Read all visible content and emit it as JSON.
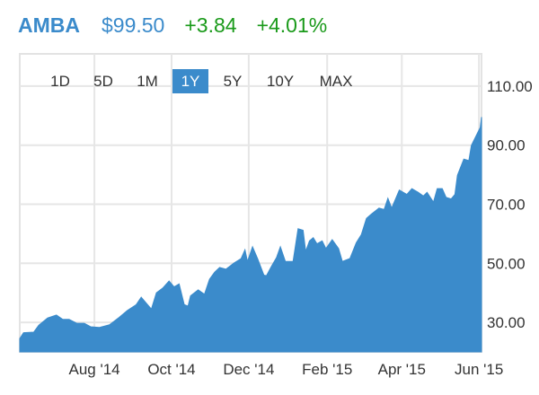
{
  "header": {
    "symbol": "AMBA",
    "price": "$99.50",
    "change": "+3.84",
    "change_pct": "+4.01%",
    "colors": {
      "symbol": "#3b8bcb",
      "price": "#3b8bcb",
      "change": "#1a9a1a"
    }
  },
  "range_buttons": [
    {
      "label": "1D",
      "active": false
    },
    {
      "label": "5D",
      "active": false
    },
    {
      "label": "1M",
      "active": false
    },
    {
      "label": "1Y",
      "active": true
    },
    {
      "label": "5Y",
      "active": false
    },
    {
      "label": "10Y",
      "active": false
    },
    {
      "label": "MAX",
      "active": false
    }
  ],
  "chart_data": {
    "type": "area",
    "title": "",
    "xlabel": "",
    "ylabel": "",
    "xlim": [
      "2014-06-03",
      "2015-06-03"
    ],
    "ylim": [
      20,
      120
    ],
    "y_axis_position": "right",
    "y_ticks": [
      30,
      50,
      70,
      90,
      110
    ],
    "y_tick_labels": [
      "30.00",
      "50.00",
      "70.00",
      "90.00",
      "110.00"
    ],
    "x_ticks": [
      "2014-08-01",
      "2014-10-01",
      "2014-12-01",
      "2015-02-01",
      "2015-04-01",
      "2015-06-01"
    ],
    "x_tick_labels": [
      "Aug '14",
      "Oct '14",
      "Dec '14",
      "Feb '15",
      "Apr '15",
      "Jun '15"
    ],
    "grid": true,
    "color": "#3b8bcb",
    "series": [
      {
        "x": [
          "2014-06-03",
          "2014-06-06",
          "2014-06-14",
          "2014-06-18",
          "2014-06-25",
          "2014-07-02",
          "2014-07-07",
          "2014-07-12",
          "2014-07-18",
          "2014-07-24",
          "2014-07-29",
          "2014-08-05",
          "2014-08-13",
          "2014-08-20",
          "2014-08-27",
          "2014-09-03",
          "2014-09-07",
          "2014-09-15",
          "2014-09-19",
          "2014-09-24",
          "2014-09-29",
          "2014-10-03",
          "2014-10-07",
          "2014-10-11",
          "2014-10-14",
          "2014-10-16",
          "2014-10-22",
          "2014-10-27",
          "2014-10-31",
          "2014-11-04",
          "2014-11-08",
          "2014-11-13",
          "2014-11-19",
          "2014-11-25",
          "2014-11-28",
          "2014-11-30",
          "2014-12-04",
          "2014-12-08",
          "2014-12-13",
          "2014-12-15",
          "2014-12-19",
          "2014-12-23",
          "2014-12-26",
          "2014-12-30",
          "2015-01-05",
          "2015-01-09",
          "2015-01-13",
          "2015-01-15",
          "2015-01-18",
          "2015-01-21",
          "2015-01-24",
          "2015-01-28",
          "2015-01-31",
          "2015-02-05",
          "2015-02-10",
          "2015-02-13",
          "2015-02-19",
          "2015-02-24",
          "2015-02-28",
          "2015-03-04",
          "2015-03-08",
          "2015-03-14",
          "2015-03-18",
          "2015-03-21",
          "2015-03-24",
          "2015-03-26",
          "2015-03-30",
          "2015-04-05",
          "2015-04-09",
          "2015-04-14",
          "2015-04-18",
          "2015-04-21",
          "2015-04-26",
          "2015-04-29",
          "2015-05-03",
          "2015-05-06",
          "2015-05-10",
          "2015-05-13",
          "2015-05-15",
          "2015-05-20",
          "2015-05-24",
          "2015-05-26",
          "2015-05-30",
          "2015-06-02",
          "2015-06-03"
        ],
        "y": [
          24.5,
          26.5,
          26.7,
          29,
          31.5,
          32.5,
          31,
          31,
          29.7,
          29.7,
          28.5,
          28.3,
          29.2,
          31.5,
          34,
          36,
          38.5,
          34.5,
          40,
          41.6,
          44,
          42,
          43,
          36,
          35.5,
          39,
          41,
          39.5,
          44.6,
          47,
          48.6,
          48,
          50,
          51.6,
          54.6,
          50.6,
          55.6,
          51.6,
          46,
          45.8,
          49,
          52,
          55.6,
          50.6,
          50.6,
          61.7,
          61.2,
          54,
          57.6,
          58.7,
          56.6,
          57.6,
          55,
          58,
          55,
          50.6,
          51.6,
          57,
          59.7,
          65.2,
          66.7,
          68.7,
          68.2,
          72,
          68.7,
          70.7,
          74.8,
          73.3,
          75.3,
          74,
          72.8,
          74,
          70.7,
          75.3,
          75.3,
          72.3,
          71.8,
          73.3,
          79.8,
          85.3,
          84.8,
          89.9,
          93.4,
          96,
          99.5
        ]
      }
    ]
  }
}
